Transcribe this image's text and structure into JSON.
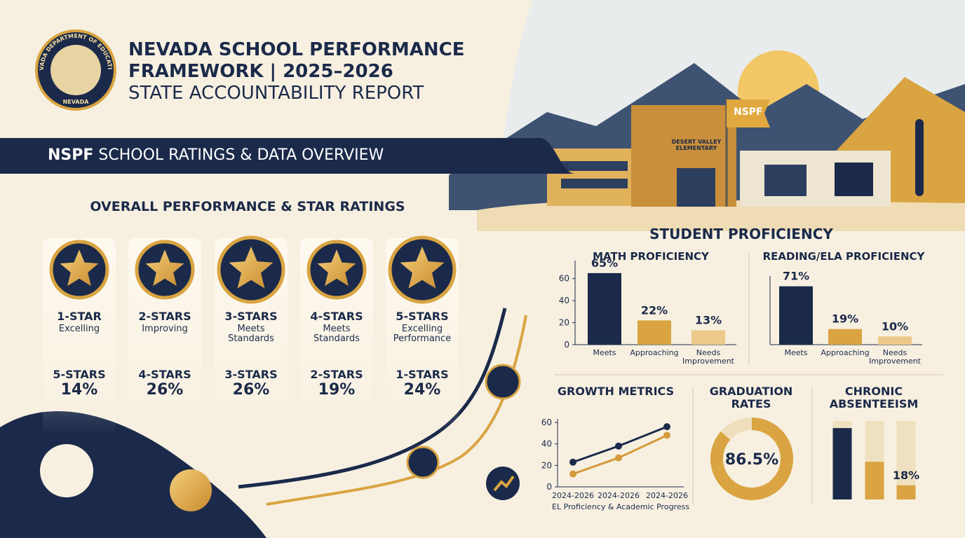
{
  "header": {
    "seal_top": "NEVADA DEPARTMENT OF EDUCATION",
    "seal_bottom": "NEVADA",
    "title_line1": "NEVADA SCHOOL PERFORMANCE",
    "title_line2": "FRAMEWORK | 2025–2026",
    "subtitle": "STATE ACCOUNTABILITY REPORT"
  },
  "banner": {
    "acronym": "NSPF",
    "text": "SCHOOL RATINGS & DATA OVERVIEW"
  },
  "school": {
    "flag": "NSPF",
    "sign": "DESERT VALLEY ELEMENTARY"
  },
  "ratings": {
    "title": "OVERALL PERFORMANCE & STAR RATINGS",
    "items": [
      {
        "label": "1-STAR",
        "description": "Excelling",
        "rating": "5-STARS",
        "share": "14%"
      },
      {
        "label": "2-STARS",
        "description": "Improving",
        "rating": "4-STARS",
        "share": "26%"
      },
      {
        "label": "3-STARS",
        "description": "Meets Standards",
        "rating": "3-STARS",
        "share": "26%"
      },
      {
        "label": "4-STARS",
        "description": "Meets Standards",
        "rating": "2-STARS",
        "share": "19%"
      },
      {
        "label": "5-STARS",
        "description": "Excelling Performance",
        "rating": "1-STARS",
        "share": "24%"
      }
    ]
  },
  "proficiency_title": "STUDENT PROFICIENCY",
  "chart_data": [
    {
      "type": "bar",
      "title": "MATH PROFICIENCY",
      "categories": [
        "Meets",
        "Approaching",
        "Needs Improvement"
      ],
      "values": [
        65,
        22,
        13
      ],
      "value_labels": [
        "65%",
        "22%",
        "13%"
      ],
      "colors": [
        "#1b2a4a",
        "#d9a441",
        "#ecc98a"
      ],
      "ylim": [
        0,
        70
      ],
      "yticks": [
        0,
        20,
        40,
        60
      ]
    },
    {
      "type": "bar",
      "title": "READING/ELA PROFICIENCY",
      "categories": [
        "Meets",
        "Approaching",
        "Needs Improvement"
      ],
      "values": [
        71,
        19,
        10
      ],
      "value_labels": [
        "71%",
        "19%",
        "10%"
      ],
      "colors": [
        "#1b2a4a",
        "#d9a441",
        "#ecc98a"
      ],
      "ylim": [
        0,
        75
      ]
    },
    {
      "type": "line",
      "title": "GROWTH METRICS",
      "categories": [
        "2024-2026",
        "2024-2026",
        "2024-2026"
      ],
      "xlabel": "EL Proficiency & Academic Progress",
      "series": [
        {
          "color": "#1b2a4a",
          "values": [
            23,
            38,
            56
          ]
        },
        {
          "color": "#d49a3a",
          "values": [
            12,
            27,
            48
          ]
        }
      ],
      "ylim": [
        0,
        60
      ],
      "yticks": [
        0,
        20,
        40,
        60
      ]
    },
    {
      "type": "donut",
      "title": "GRADUATION RATES",
      "values": [
        86.5
      ],
      "value_labels": [
        "86.5%"
      ],
      "color": "#d9a441",
      "track_color": "#efdfbd",
      "ylim": [
        0,
        100
      ]
    },
    {
      "type": "bar",
      "title": "CHRONIC ABSENTEEISM",
      "values": [
        91,
        48,
        18
      ],
      "value_labels": [
        null,
        null,
        "18%"
      ],
      "colors": [
        "#1b2a4a",
        "#d9a441",
        "#d9a441"
      ],
      "track_color": "#efe0bf",
      "ylim": [
        0,
        100
      ]
    }
  ]
}
